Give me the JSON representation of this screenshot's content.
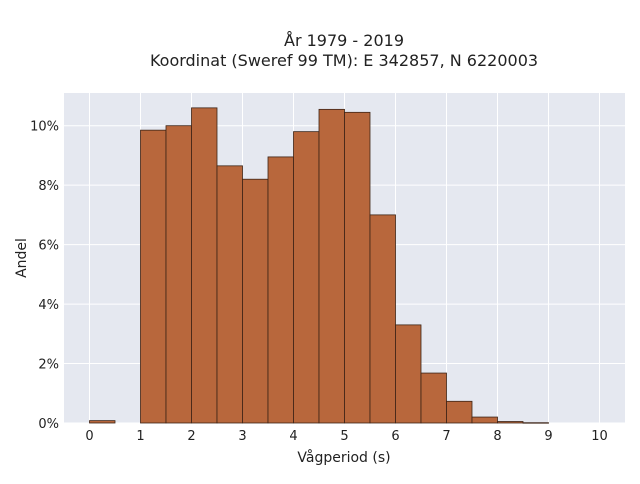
{
  "chart_data": {
    "type": "bar",
    "title_lines": [
      "År 1979 - 2019",
      "Koordinat (Sweref 99 TM): E 342857, N 6220003"
    ],
    "xlabel": "Vågperiod (s)",
    "ylabel": "Andel",
    "xlim": [
      -0.5,
      10.5
    ],
    "ylim": [
      0,
      11.1
    ],
    "xticks": [
      0,
      1,
      2,
      3,
      4,
      5,
      6,
      7,
      8,
      9,
      10
    ],
    "yticks": [
      0,
      2,
      4,
      6,
      8,
      10
    ],
    "ytick_labels": [
      "0%",
      "2%",
      "4%",
      "6%",
      "8%",
      "10%"
    ],
    "grid": true,
    "bin_width": 0.5,
    "bins": [
      {
        "start": 0.0,
        "value": 0.08
      },
      {
        "start": 0.5,
        "value": 0.0
      },
      {
        "start": 1.0,
        "value": 9.85
      },
      {
        "start": 1.5,
        "value": 10.0
      },
      {
        "start": 2.0,
        "value": 10.6
      },
      {
        "start": 2.5,
        "value": 8.65
      },
      {
        "start": 3.0,
        "value": 8.2
      },
      {
        "start": 3.5,
        "value": 8.95
      },
      {
        "start": 4.0,
        "value": 9.8
      },
      {
        "start": 4.5,
        "value": 10.55
      },
      {
        "start": 5.0,
        "value": 10.45
      },
      {
        "start": 5.5,
        "value": 7.0
      },
      {
        "start": 6.0,
        "value": 3.3
      },
      {
        "start": 6.5,
        "value": 1.68
      },
      {
        "start": 7.0,
        "value": 0.73
      },
      {
        "start": 7.5,
        "value": 0.2
      },
      {
        "start": 8.0,
        "value": 0.05
      },
      {
        "start": 8.5,
        "value": 0.01
      }
    ],
    "colors": {
      "bar_fill": "#b8673c",
      "bar_stroke": "#3d2416",
      "plot_bg": "#e5e8f0",
      "grid": "#ffffff"
    }
  }
}
